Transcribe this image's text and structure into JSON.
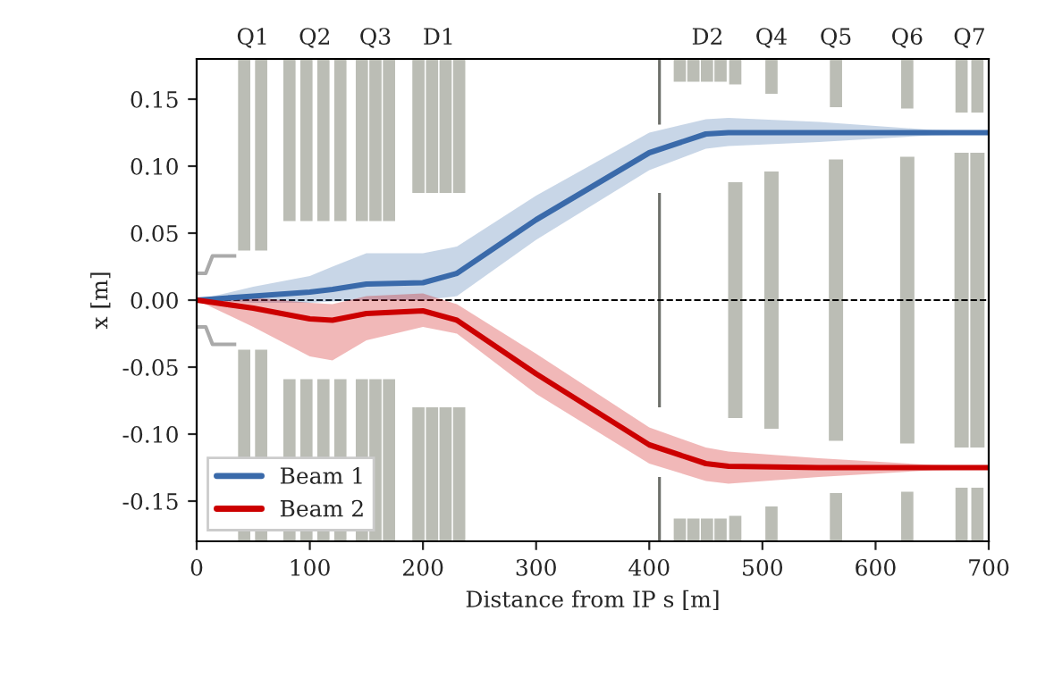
{
  "chart_data": {
    "type": "line",
    "xlabel": "Distance from IP s [m]",
    "ylabel": "x [m]",
    "xlim": [
      0,
      700
    ],
    "xticks": [
      0,
      100,
      200,
      300,
      400,
      500,
      600,
      700
    ],
    "ylim": [
      -0.18,
      0.18
    ],
    "yticks": [
      -0.15,
      {
        "value": -0.1,
        "label": "-0.10"
      },
      -0.05,
      {
        "value": 0,
        "label": "0.00"
      },
      0.05,
      {
        "value": 0.1,
        "label": "0.10"
      },
      0.15
    ],
    "x": [
      0,
      50,
      100,
      120,
      150,
      200,
      230,
      300,
      400,
      450,
      470,
      550,
      650,
      700
    ],
    "series": [
      {
        "type": "bar",
        "color": "#bbbdb5",
        "x": [
          42,
          57,
          82,
          97,
          112,
          127,
          146,
          158,
          170,
          196,
          208,
          220,
          232,
          427,
          439,
          451,
          463,
          476,
          508,
          565,
          628,
          676,
          690
        ],
        "base": [
          0.037,
          0.037,
          0.059,
          0.059,
          0.059,
          0.059,
          0.059,
          0.059,
          0.059,
          0.08,
          0.08,
          0.08,
          0.08,
          0.163,
          0.163,
          0.163,
          0.163,
          0.161,
          0.154,
          0.144,
          0.143,
          0.14,
          0.14
        ],
        "values": [
          0.143,
          0.143,
          0.121,
          0.121,
          0.121,
          0.121,
          0.121,
          0.121,
          0.121,
          0.1,
          0.1,
          0.1,
          0.1,
          0.017,
          0.017,
          0.017,
          0.017,
          0.019,
          0.026,
          0.036,
          0.037,
          0.04,
          0.04
        ]
      },
      {
        "type": "bar",
        "color": "#bbbdb5",
        "x": [
          42,
          57,
          82,
          97,
          112,
          127,
          146,
          158,
          170,
          196,
          208,
          220,
          232,
          427,
          439,
          451,
          463,
          476,
          508,
          565,
          628,
          676,
          690
        ],
        "base": [
          -0.18,
          -0.18,
          -0.18,
          -0.18,
          -0.18,
          -0.18,
          -0.18,
          -0.18,
          -0.18,
          -0.18,
          -0.18,
          -0.18,
          -0.18,
          -0.18,
          -0.18,
          -0.18,
          -0.18,
          -0.18,
          -0.18,
          -0.18,
          -0.18,
          -0.18,
          -0.18
        ],
        "values": [
          0.143,
          0.143,
          0.121,
          0.121,
          0.121,
          0.121,
          0.121,
          0.121,
          0.121,
          0.1,
          0.1,
          0.1,
          0.1,
          0.017,
          0.017,
          0.017,
          0.017,
          0.019,
          0.026,
          0.036,
          0.037,
          0.04,
          0.04
        ]
      },
      {
        "type": "bar",
        "color": "#bbbdb5",
        "x": [
          476,
          508,
          565,
          628,
          676,
          690
        ],
        "base": [
          -0.088,
          -0.096,
          -0.105,
          -0.107,
          -0.11,
          -0.11
        ],
        "values": [
          0.176,
          0.192,
          0.21,
          0.214,
          0.22,
          0.22
        ]
      },
      {
        "type": "bar",
        "color": "#6e706b",
        "x": [
          409
        ],
        "base": [
          0.131
        ],
        "values": [
          0.049
        ]
      },
      {
        "type": "bar",
        "color": "#6e706b",
        "x": [
          409
        ],
        "base": [
          -0.08
        ],
        "values": [
          0.16
        ]
      },
      {
        "type": "bar",
        "color": "#6e706b",
        "x": [
          409
        ],
        "base": [
          -0.18
        ],
        "values": [
          0.048
        ]
      },
      {
        "type": "line",
        "color": "#aaaaaa",
        "x": [
          0,
          8,
          14,
          35
        ],
        "values": [
          0.02,
          0.02,
          0.033,
          0.033
        ]
      },
      {
        "type": "line",
        "color": "#aaaaaa",
        "x": [
          0,
          8,
          14,
          35
        ],
        "values": [
          -0.02,
          -0.02,
          -0.033,
          -0.033
        ]
      },
      {
        "name": "Beam 1",
        "color": "#3a6aaa",
        "values": [
          0,
          0.003,
          0.006,
          0.008,
          0.012,
          0.013,
          0.02,
          0.06,
          0.11,
          0.124,
          0.125,
          0.125,
          0.125,
          0.125
        ],
        "lower": [
          0,
          -0.002,
          -0.002,
          -0.001,
          0.0,
          0.0,
          0.003,
          0.045,
          0.097,
          0.113,
          0.115,
          0.118,
          0.123,
          0.124
        ],
        "upper": [
          0,
          0.01,
          0.018,
          0.025,
          0.035,
          0.035,
          0.04,
          0.078,
          0.125,
          0.135,
          0.136,
          0.133,
          0.127,
          0.126
        ]
      },
      {
        "name": "Beam 2",
        "color": "#cc0000",
        "values": [
          0,
          -0.006,
          -0.014,
          -0.015,
          -0.01,
          -0.008,
          -0.015,
          -0.055,
          -0.108,
          -0.122,
          -0.124,
          -0.125,
          -0.125,
          -0.125
        ],
        "lower": [
          0,
          -0.02,
          -0.042,
          -0.045,
          -0.03,
          -0.02,
          -0.025,
          -0.07,
          -0.122,
          -0.135,
          -0.137,
          -0.132,
          -0.127,
          -0.126
        ],
        "upper": [
          0,
          0.002,
          -0.002,
          -0.003,
          0.003,
          0.005,
          -0.003,
          -0.04,
          -0.095,
          -0.11,
          -0.113,
          -0.118,
          -0.123,
          -0.124
        ]
      }
    ],
    "ref_lines": [
      {
        "axis": "y",
        "value": 0,
        "color": "#000000",
        "line_style": "dashed"
      }
    ],
    "annotations": [
      "Q1",
      "Q2",
      "Q3",
      "D1",
      "D2",
      "Q4",
      "Q5",
      "Q6",
      "Q7"
    ],
    "legend": "bottom left",
    "grid": false
  }
}
